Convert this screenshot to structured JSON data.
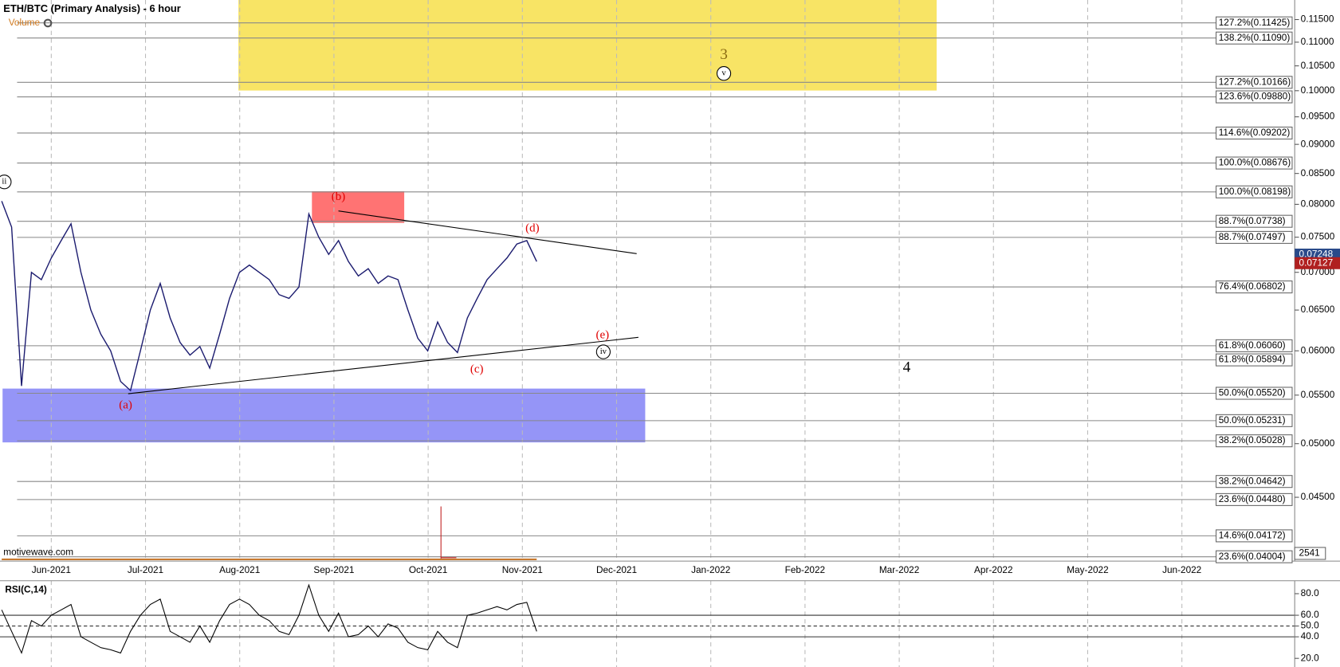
{
  "chart_data": {
    "type": "line",
    "title": "ETH/BTC (Primary Analysis) - 6 hour",
    "volume_label": "Volume",
    "watermark": "motivewave.com",
    "log_scale": true,
    "grid": true,
    "ylim": [
      0.0397,
      0.1195
    ],
    "yticks": [
      {
        "value": 0.115,
        "label": "0.11500"
      },
      {
        "value": 0.11,
        "label": "0.11000"
      },
      {
        "value": 0.105,
        "label": "0.10500"
      },
      {
        "value": 0.1,
        "label": "0.10000"
      },
      {
        "value": 0.095,
        "label": "0.09500"
      },
      {
        "value": 0.09,
        "label": "0.09000"
      },
      {
        "value": 0.085,
        "label": "0.08500"
      },
      {
        "value": 0.08,
        "label": "0.08000"
      },
      {
        "value": 0.075,
        "label": "0.07500"
      },
      {
        "value": 0.07,
        "label": "0.07000"
      },
      {
        "value": 0.065,
        "label": "0.06500"
      },
      {
        "value": 0.06,
        "label": "0.06000"
      },
      {
        "value": 0.055,
        "label": "0.05500"
      },
      {
        "value": 0.05,
        "label": "0.05000"
      },
      {
        "value": 0.045,
        "label": "0.04500"
      }
    ],
    "xticks": [
      "Jun-2021",
      "Jul-2021",
      "Aug-2021",
      "Sep-2021",
      "Oct-2021",
      "Nov-2021",
      "Dec-2021",
      "Jan-2022",
      "Feb-2022",
      "Mar-2022",
      "Apr-2022",
      "May-2022",
      "Jun-2022"
    ],
    "series": [
      {
        "name": "ETH/BTC",
        "color": "#1a1a6e",
        "values": [
          0.0805,
          0.0765,
          0.056,
          0.07,
          0.069,
          0.072,
          0.0745,
          0.077,
          0.07,
          0.065,
          0.062,
          0.06,
          0.0565,
          0.0555,
          0.06,
          0.065,
          0.0685,
          0.064,
          0.061,
          0.0595,
          0.0605,
          0.058,
          0.062,
          0.0665,
          0.07,
          0.071,
          0.07,
          0.069,
          0.067,
          0.0665,
          0.068,
          0.0785,
          0.075,
          0.0725,
          0.0745,
          0.0715,
          0.0695,
          0.0705,
          0.0685,
          0.0695,
          0.069,
          0.065,
          0.0615,
          0.06,
          0.0635,
          0.061,
          0.0598,
          0.064,
          0.0665,
          0.069,
          0.0705,
          0.072,
          0.074,
          0.0745,
          0.0715
        ]
      }
    ],
    "fib_levels": [
      {
        "value": 0.11425,
        "label": "127.2%(0.11425)"
      },
      {
        "value": 0.1109,
        "label": "138.2%(0.11090)"
      },
      {
        "value": 0.10166,
        "label": "127.2%(0.10166)"
      },
      {
        "value": 0.0988,
        "label": "123.6%(0.09880)"
      },
      {
        "value": 0.09202,
        "label": "114.6%(0.09202)"
      },
      {
        "value": 0.08676,
        "label": "100.0%(0.08676)"
      },
      {
        "value": 0.08198,
        "label": "100.0%(0.08198)"
      },
      {
        "value": 0.07738,
        "label": "88.7%(0.07738)"
      },
      {
        "value": 0.07497,
        "label": "88.7%(0.07497)"
      },
      {
        "value": 0.06802,
        "label": "76.4%(0.06802)"
      },
      {
        "value": 0.0606,
        "label": "61.8%(0.06060)"
      },
      {
        "value": 0.05894,
        "label": "61.8%(0.05894)"
      },
      {
        "value": 0.0552,
        "label": "50.0%(0.05520)"
      },
      {
        "value": 0.05231,
        "label": "50.0%(0.05231)"
      },
      {
        "value": 0.05028,
        "label": "38.2%(0.05028)"
      },
      {
        "value": 0.04642,
        "label": "38.2%(0.04642)"
      },
      {
        "value": 0.0448,
        "label": "23.6%(0.04480)"
      },
      {
        "value": 0.04172,
        "label": "14.6%(0.04172)"
      },
      {
        "value": 0.04004,
        "label": "23.6%(0.04004)"
      }
    ],
    "price_labels": [
      {
        "value": 0.07248,
        "label": "0.07248",
        "color": "#2a4a8a"
      },
      {
        "value": 0.07127,
        "label": "0.07127",
        "color": "#b02020"
      }
    ],
    "volume_value": 2541,
    "wave_labels": [
      {
        "text": "(a)",
        "color": "#e00000"
      },
      {
        "text": "(b)",
        "color": "#e00000"
      },
      {
        "text": "(c)",
        "color": "#e00000"
      },
      {
        "text": "(d)",
        "color": "#e00000"
      },
      {
        "text": "(e)",
        "color": "#e00000"
      },
      {
        "text": "ii",
        "color": "#000000"
      },
      {
        "text": "v",
        "color": "#000000"
      },
      {
        "text": "iv",
        "color": "#000000"
      },
      {
        "text": "3",
        "color": "#8a6a10"
      },
      {
        "text": "4",
        "color": "#000000"
      }
    ],
    "rsi": {
      "title": "RSI(C,14)",
      "ylim": [
        12,
        92
      ],
      "yticks": [
        {
          "value": 80,
          "label": "80.0"
        },
        {
          "value": 60,
          "label": "60.0"
        },
        {
          "value": 50,
          "label": "50.0"
        },
        {
          "value": 40,
          "label": "40.0"
        },
        {
          "value": 20,
          "label": "20.0"
        }
      ],
      "levels": [
        60,
        50,
        40
      ],
      "color": "#000000",
      "values": [
        65,
        45,
        25,
        55,
        50,
        60,
        65,
        70,
        40,
        35,
        30,
        28,
        25,
        45,
        60,
        70,
        75,
        45,
        40,
        35,
        50,
        35,
        55,
        70,
        75,
        70,
        60,
        55,
        45,
        42,
        60,
        88,
        60,
        45,
        62,
        40,
        42,
        50,
        40,
        52,
        48,
        35,
        30,
        28,
        45,
        35,
        30,
        60,
        62,
        65,
        68,
        65,
        70,
        72,
        45
      ]
    }
  }
}
